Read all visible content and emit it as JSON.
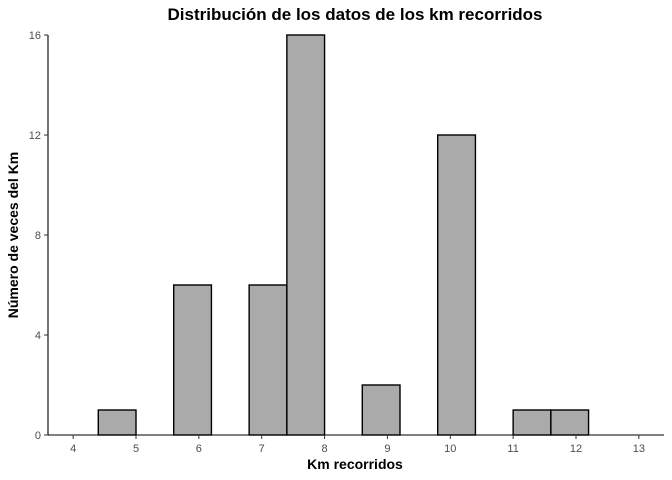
{
  "chart_data": {
    "type": "bar",
    "title": "Distribución de los datos de los km recorridos",
    "xlabel": "Km recorridos",
    "ylabel": "Número de veces del Km",
    "xlim": [
      3.6,
      13.4
    ],
    "ylim": [
      0,
      16
    ],
    "x_ticks": [
      4,
      5,
      6,
      7,
      8,
      9,
      10,
      11,
      12,
      13
    ],
    "y_ticks": [
      0,
      4,
      8,
      12,
      16
    ],
    "bin_width": 0.6,
    "bins": [
      {
        "start": 3.8,
        "end": 4.4,
        "count": 0
      },
      {
        "start": 4.4,
        "end": 5.0,
        "count": 1
      },
      {
        "start": 5.0,
        "end": 5.6,
        "count": 0
      },
      {
        "start": 5.6,
        "end": 6.2,
        "count": 6
      },
      {
        "start": 6.2,
        "end": 6.8,
        "count": 0
      },
      {
        "start": 6.8,
        "end": 7.4,
        "count": 6
      },
      {
        "start": 7.4,
        "end": 8.0,
        "count": 16
      },
      {
        "start": 8.0,
        "end": 8.6,
        "count": 0
      },
      {
        "start": 8.6,
        "end": 9.2,
        "count": 2
      },
      {
        "start": 9.2,
        "end": 9.8,
        "count": 0
      },
      {
        "start": 9.8,
        "end": 10.4,
        "count": 12
      },
      {
        "start": 10.4,
        "end": 11.0,
        "count": 0
      },
      {
        "start": 11.0,
        "end": 11.6,
        "count": 1
      },
      {
        "start": 11.6,
        "end": 12.2,
        "count": 1
      },
      {
        "start": 12.2,
        "end": 12.8,
        "count": 0
      },
      {
        "start": 12.8,
        "end": 13.4,
        "count": 0
      }
    ],
    "grid": false,
    "bar_fill": "#aaaaaa",
    "bar_stroke": "#000000"
  }
}
